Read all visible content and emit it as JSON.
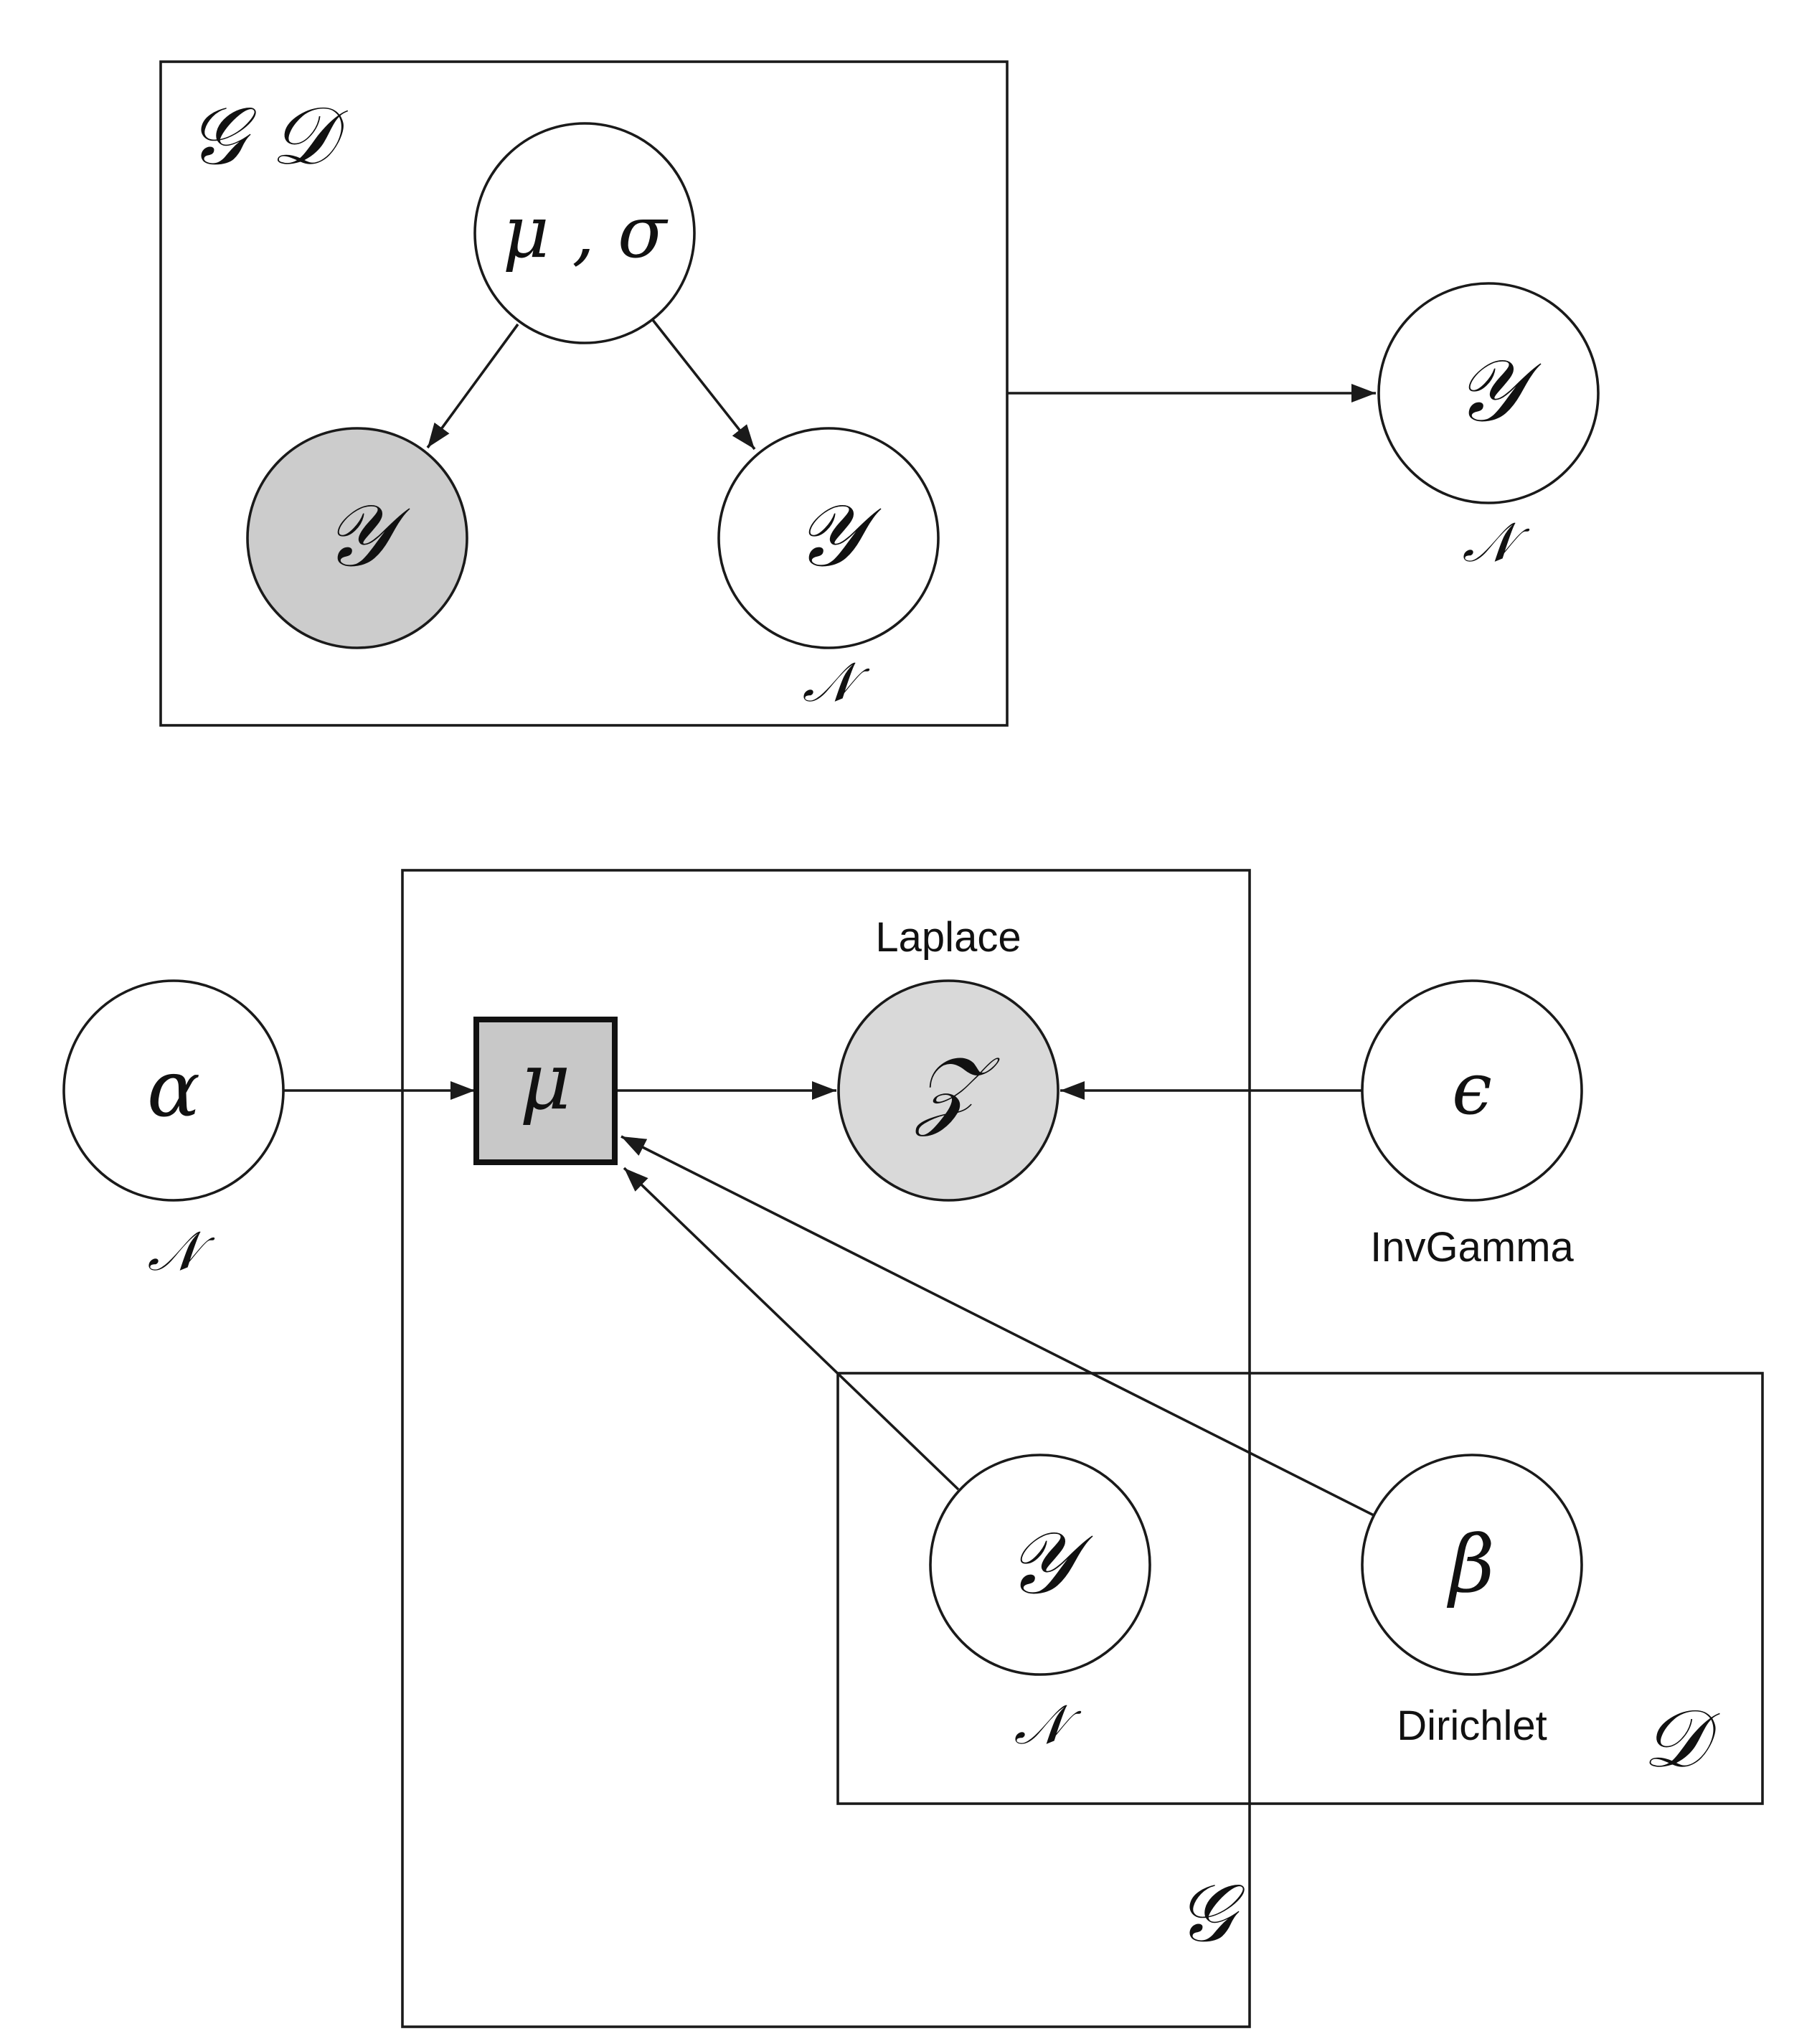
{
  "top": {
    "plate_label": "𝒢 𝒟",
    "node_musigma": "μ , σ",
    "node_y_observed": "𝒴",
    "node_y_inner": "𝒴",
    "node_y_inner_dist": "𝒩",
    "node_y_outer": "𝒴",
    "node_y_outer_dist": "𝒩"
  },
  "bottom": {
    "plate_g_label": "𝒢",
    "plate_d_label": "𝒟",
    "node_alpha": "α",
    "node_alpha_dist": "𝒩",
    "node_mu": "μ",
    "node_z": "𝒵",
    "node_z_dist": "Laplace",
    "node_epsilon": "ϵ",
    "node_epsilon_dist": "InvGamma",
    "node_y": "𝒴",
    "node_y_dist": "𝒩",
    "node_beta": "β",
    "node_beta_dist": "Dirichlet"
  },
  "colors": {
    "stroke": "#1a1a1a",
    "observed_fill": "#cccccc",
    "latent_fill": "#ffffff"
  }
}
